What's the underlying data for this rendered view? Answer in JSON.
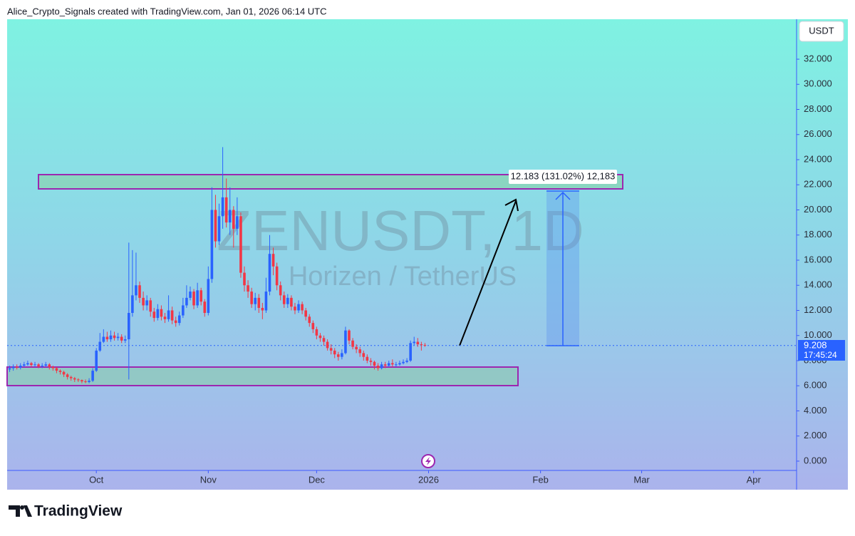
{
  "chart_data": {
    "type": "candlestick",
    "header": "Alice_Crypto_Signals created with TradingView.com, Jan 01, 2026 06:14 UTC",
    "title": "ZENUSDT, 1D",
    "subtitle": "Horizen / TetherUS",
    "currency": "USDT",
    "countdown": "17:45:24",
    "measure_label": "12.183 (131.02%) 12,183",
    "brand": "TradingView",
    "up_color": "#2962ff",
    "down_color": "#f23645",
    "xlim": [
      -24.7,
      193.9
    ],
    "ylim": [
      -0.74,
      35.18
    ],
    "xticks": [
      {
        "value": 0,
        "label": "Oct"
      },
      {
        "value": 31,
        "label": "Nov"
      },
      {
        "value": 61,
        "label": "Dec"
      },
      {
        "value": 92,
        "label": "2026"
      },
      {
        "value": 123,
        "label": "Feb"
      },
      {
        "value": 151,
        "label": "Mar"
      },
      {
        "value": 182,
        "label": "Apr"
      }
    ],
    "yticks": [
      {
        "value": 0,
        "label": "0.000"
      },
      {
        "value": 2,
        "label": "2.000"
      },
      {
        "value": 4,
        "label": "4.000"
      },
      {
        "value": 6,
        "label": "6.000"
      },
      {
        "value": 8,
        "label": "8.000"
      },
      {
        "value": 10,
        "label": "10.000"
      },
      {
        "value": 12,
        "label": "12.000"
      },
      {
        "value": 14,
        "label": "14.000"
      },
      {
        "value": 16,
        "label": "16.000"
      },
      {
        "value": 18,
        "label": "18.000"
      },
      {
        "value": 20,
        "label": "20.000"
      },
      {
        "value": 22,
        "label": "22.000"
      },
      {
        "value": 24,
        "label": "24.000"
      },
      {
        "value": 26,
        "label": "26.000"
      },
      {
        "value": 28,
        "label": "28.000"
      },
      {
        "value": 30,
        "label": "30.000"
      },
      {
        "value": 32,
        "label": "32.000"
      }
    ],
    "x": [
      -24,
      -23,
      -22,
      -21,
      -20,
      -19,
      -18,
      -17,
      -16,
      -15,
      -14,
      -13,
      -12,
      -11,
      -10,
      -9,
      -8,
      -7,
      -6,
      -5,
      -4,
      -3,
      -2,
      -1,
      0,
      1,
      2,
      3,
      4,
      5,
      6,
      7,
      8,
      9,
      10,
      11,
      12,
      13,
      14,
      15,
      16,
      17,
      18,
      19,
      20,
      21,
      22,
      23,
      24,
      25,
      26,
      27,
      28,
      29,
      30,
      31,
      32,
      33,
      34,
      35,
      36,
      37,
      38,
      39,
      40,
      41,
      42,
      43,
      44,
      45,
      46,
      47,
      48,
      49,
      50,
      51,
      52,
      53,
      54,
      55,
      56,
      57,
      58,
      59,
      60,
      61,
      62,
      63,
      64,
      65,
      66,
      67,
      68,
      69,
      70,
      71,
      72,
      73,
      74,
      75,
      76,
      77,
      78,
      79,
      80,
      81,
      82,
      83,
      84,
      85,
      86,
      87,
      88,
      89,
      90,
      91
    ],
    "open": [
      7.3,
      7.4,
      7.5,
      7.45,
      7.6,
      7.7,
      7.8,
      7.65,
      7.7,
      7.55,
      7.6,
      7.7,
      7.5,
      7.4,
      7.2,
      7.1,
      6.9,
      6.7,
      6.6,
      6.5,
      6.45,
      6.35,
      6.3,
      6.4,
      7.2,
      8.8,
      9.5,
      9.9,
      9.7,
      10.0,
      9.8,
      9.9,
      9.6,
      9.7,
      11.8,
      13.2,
      14.0,
      13.0,
      12.4,
      12.8,
      11.9,
      11.4,
      12.1,
      11.5,
      11.3,
      12.0,
      11.2,
      11.0,
      11.6,
      12.4,
      13.0,
      13.5,
      12.4,
      13.6,
      12.7,
      11.8,
      14.5,
      20.0,
      17.5,
      19.5,
      21.0,
      19.0,
      20.0,
      18.5,
      19.5,
      15.0,
      14.0,
      13.5,
      12.5,
      13.0,
      12.2,
      12.0,
      13.5,
      16.5,
      15.5,
      14.0,
      13.2,
      12.5,
      13.0,
      12.3,
      12.0,
      12.5,
      12.0,
      11.5,
      11.0,
      10.5,
      10.0,
      9.8,
      9.5,
      9.0,
      8.8,
      8.5,
      8.3,
      8.6,
      10.4,
      9.6,
      9.1,
      8.9,
      8.6,
      8.3,
      8.0,
      7.9,
      7.6,
      7.4,
      7.7,
      7.6,
      7.8,
      7.7,
      7.7,
      7.8,
      7.9,
      8.0,
      9.4,
      9.5,
      9.3,
      9.25
    ],
    "high": [
      7.6,
      7.7,
      7.7,
      7.8,
      7.9,
      8.0,
      7.9,
      7.9,
      7.8,
      7.8,
      7.9,
      7.8,
      7.6,
      7.5,
      7.3,
      7.2,
      7.0,
      6.8,
      6.7,
      6.6,
      6.5,
      6.5,
      6.6,
      7.4,
      9.0,
      10.2,
      10.5,
      10.3,
      10.4,
      10.3,
      10.2,
      10.1,
      10.0,
      17.4,
      16.8,
      16.6,
      14.3,
      13.5,
      13.2,
      13.0,
      12.2,
      12.5,
      12.4,
      11.8,
      13.2,
      12.3,
      11.5,
      11.9,
      13.0,
      14.0,
      13.9,
      13.7,
      14.2,
      13.8,
      12.9,
      15.5,
      21.8,
      21.2,
      20.5,
      25.0,
      22.5,
      21.8,
      20.3,
      21.0,
      19.8,
      15.5,
      14.4,
      13.8,
      13.4,
      13.3,
      12.6,
      14.6,
      18.0,
      17.0,
      15.8,
      14.3,
      13.5,
      13.3,
      13.2,
      12.6,
      12.8,
      12.7,
      12.2,
      11.7,
      11.2,
      10.7,
      10.2,
      10.0,
      9.7,
      9.3,
      9.0,
      8.7,
      8.9,
      10.7,
      10.5,
      9.8,
      9.3,
      9.1,
      8.8,
      8.5,
      8.2,
      8.0,
      7.8,
      7.9,
      7.9,
      8.0,
      8.1,
      7.9,
      8.0,
      8.1,
      8.2,
      9.6,
      9.9,
      9.8,
      9.5,
      9.4
    ],
    "low": [
      7.1,
      7.2,
      7.3,
      7.3,
      7.5,
      7.6,
      7.5,
      7.5,
      7.4,
      7.4,
      7.5,
      7.3,
      7.2,
      7.0,
      6.9,
      6.7,
      6.5,
      6.4,
      6.3,
      6.3,
      6.2,
      6.2,
      6.2,
      6.3,
      7.1,
      8.7,
      9.4,
      9.5,
      9.5,
      9.6,
      9.6,
      9.4,
      9.4,
      6.5,
      11.5,
      12.8,
      12.6,
      12.0,
      12.0,
      11.5,
      11.1,
      11.2,
      11.2,
      11.0,
      11.1,
      10.9,
      10.7,
      10.8,
      11.4,
      12.2,
      12.8,
      12.1,
      12.2,
      12.4,
      11.5,
      11.6,
      14.2,
      17.0,
      17.2,
      18.5,
      18.6,
      18.0,
      17.0,
      18.0,
      14.6,
      13.5,
      13.0,
      12.2,
      12.0,
      11.8,
      11.3,
      11.8,
      13.2,
      14.8,
      13.6,
      12.8,
      12.2,
      12.2,
      12.0,
      11.7,
      11.8,
      11.7,
      11.2,
      10.7,
      10.2,
      9.7,
      9.5,
      9.2,
      8.8,
      8.5,
      8.2,
      8.0,
      8.1,
      8.5,
      9.3,
      8.9,
      8.6,
      8.3,
      8.0,
      7.8,
      7.6,
      7.3,
      7.2,
      7.3,
      7.4,
      7.5,
      7.5,
      7.5,
      7.6,
      7.7,
      7.8,
      7.9,
      9.2,
      9.1,
      8.8,
      9.1
    ],
    "close": [
      7.4,
      7.5,
      7.45,
      7.6,
      7.7,
      7.8,
      7.65,
      7.7,
      7.55,
      7.6,
      7.7,
      7.5,
      7.4,
      7.2,
      7.1,
      6.9,
      6.7,
      6.6,
      6.5,
      6.45,
      6.35,
      6.3,
      6.4,
      7.2,
      8.8,
      9.5,
      9.9,
      9.7,
      10.0,
      9.8,
      9.9,
      9.6,
      9.7,
      11.8,
      13.2,
      14.0,
      13.0,
      12.4,
      12.8,
      11.9,
      11.4,
      12.1,
      11.5,
      11.3,
      12.0,
      11.2,
      11.0,
      11.6,
      12.4,
      13.0,
      13.5,
      12.4,
      13.6,
      12.7,
      11.8,
      14.5,
      20.0,
      17.5,
      19.5,
      21.0,
      19.0,
      20.0,
      18.5,
      19.5,
      15.0,
      14.0,
      13.5,
      12.5,
      13.0,
      12.2,
      12.0,
      13.5,
      16.5,
      15.5,
      14.0,
      13.2,
      12.5,
      13.0,
      12.3,
      12.0,
      12.5,
      12.0,
      11.5,
      11.0,
      10.5,
      10.0,
      9.8,
      9.5,
      9.0,
      8.8,
      8.5,
      8.3,
      8.6,
      10.4,
      9.6,
      9.1,
      8.9,
      8.6,
      8.3,
      8.0,
      7.9,
      7.6,
      7.4,
      7.7,
      7.6,
      7.8,
      7.7,
      7.7,
      7.8,
      7.9,
      8.0,
      9.4,
      9.5,
      9.3,
      9.25,
      9.208
    ]
  }
}
